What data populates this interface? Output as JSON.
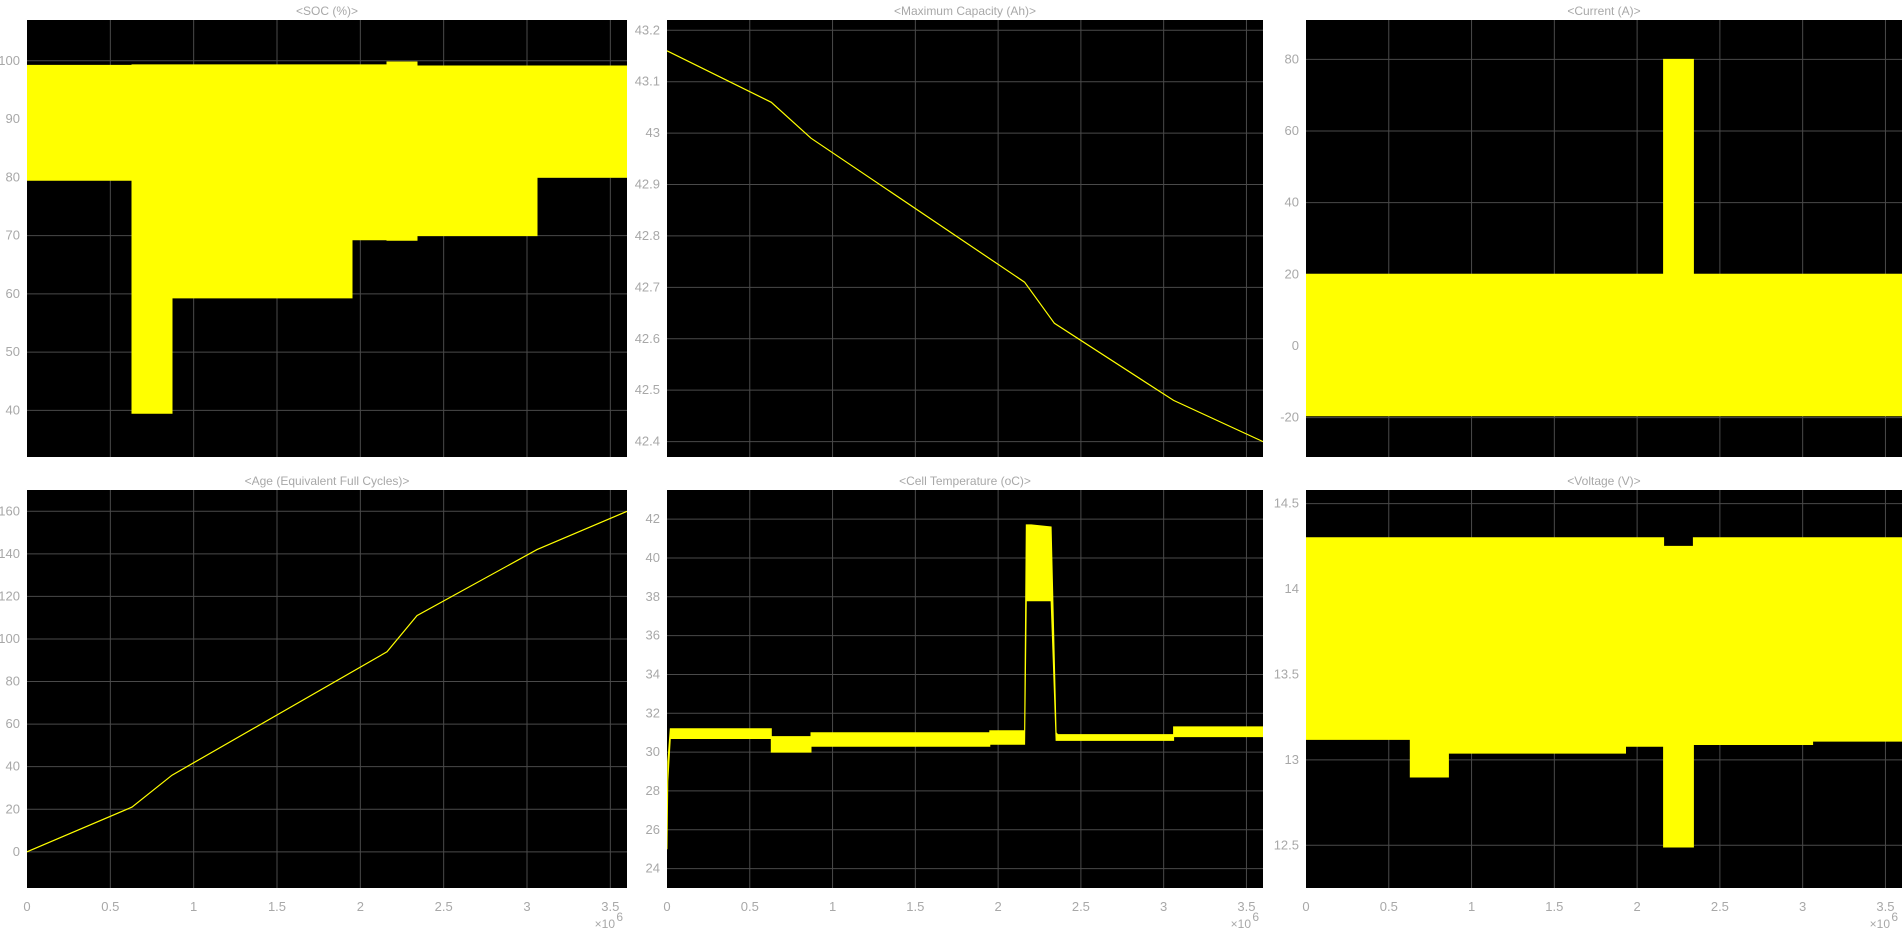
{
  "colors": {
    "background": "#ffffff",
    "axes": "#000000",
    "grid": "#4a4a4a",
    "trace": "#ffff00",
    "text": "#a8a8a8"
  },
  "x_exponent": "×10",
  "x_exponent_power": "6",
  "chart_data": [
    {
      "id": "soc",
      "title": "<SOC (%)>",
      "type": "area",
      "xlim": [
        0,
        3.6
      ],
      "ylim": [
        32,
        107
      ],
      "xticks": [
        0,
        0.5,
        1,
        1.5,
        2,
        2.5,
        3,
        3.5
      ],
      "xtick_labels": [
        "",
        "",
        "",
        "",
        "",
        "",
        "",
        ""
      ],
      "yticks": [
        40,
        50,
        60,
        70,
        80,
        90,
        100
      ],
      "ytick_labels": [
        "40",
        "50",
        "60",
        "70",
        "80",
        "90",
        "100"
      ],
      "grid": true,
      "band": {
        "x": [
          0,
          0.63,
          0.63,
          0.87,
          0.87,
          1.95,
          1.95,
          2.16,
          2.16,
          2.34,
          2.34,
          3.06,
          3.06,
          3.6
        ],
        "upper": [
          99.2,
          99.2,
          99.3,
          99.3,
          99.3,
          99.3,
          99.3,
          99.3,
          99.8,
          99.8,
          99.1,
          99.1,
          99.1,
          99.1
        ],
        "lower": [
          79.5,
          79.5,
          39.5,
          39.5,
          59.3,
          59.3,
          69.3,
          69.3,
          69.2,
          69.2,
          70.0,
          70.0,
          80.0,
          80.0
        ]
      }
    },
    {
      "id": "max_capacity",
      "title": "<Maximum Capacity  (Ah)>",
      "type": "line",
      "xlim": [
        0,
        3.6
      ],
      "ylim": [
        42.37,
        43.22
      ],
      "xticks": [
        0,
        0.5,
        1,
        1.5,
        2,
        2.5,
        3,
        3.5
      ],
      "xtick_labels": [
        "",
        "",
        "",
        "",
        "",
        "",
        "",
        ""
      ],
      "yticks": [
        42.4,
        42.5,
        42.6,
        42.7,
        42.8,
        42.9,
        43,
        43.1,
        43.2
      ],
      "ytick_labels": [
        "42.4",
        "42.5",
        "42.6",
        "42.7",
        "42.8",
        "42.9",
        "43",
        "43.1",
        "43.2"
      ],
      "grid": true,
      "x": [
        0,
        0.63,
        0.87,
        2.16,
        2.34,
        3.06,
        3.6
      ],
      "y": [
        43.16,
        43.06,
        42.99,
        42.71,
        42.63,
        42.48,
        42.4
      ]
    },
    {
      "id": "current",
      "title": "<Current (A)>",
      "type": "area",
      "xlim": [
        0,
        3.6
      ],
      "ylim": [
        -31,
        91
      ],
      "xticks": [
        0,
        0.5,
        1,
        1.5,
        2,
        2.5,
        3,
        3.5
      ],
      "xtick_labels": [
        "",
        "",
        "",
        "",
        "",
        "",
        "",
        ""
      ],
      "yticks": [
        -20,
        0,
        20,
        40,
        60,
        80
      ],
      "ytick_labels": [
        "-20",
        "0",
        "20",
        "40",
        "60",
        "80"
      ],
      "grid": true,
      "band": {
        "x": [
          0,
          2.16,
          2.16,
          2.34,
          2.34,
          3.6
        ],
        "upper": [
          20,
          20,
          80,
          80,
          20,
          20
        ],
        "lower": [
          -19.5,
          -19.5,
          -19.5,
          -19.5,
          -19.5,
          -19.5
        ]
      }
    },
    {
      "id": "age",
      "title": "<Age (Equivalent Full Cycles)>",
      "type": "line",
      "xlim": [
        0,
        3.6
      ],
      "ylim": [
        -17,
        170
      ],
      "xticks": [
        0,
        0.5,
        1,
        1.5,
        2,
        2.5,
        3,
        3.5
      ],
      "xtick_labels": [
        "0",
        "0.5",
        "1",
        "1.5",
        "2",
        "2.5",
        "3",
        "3.5"
      ],
      "yticks": [
        0,
        20,
        40,
        60,
        80,
        100,
        120,
        140,
        160
      ],
      "ytick_labels": [
        "0",
        "20",
        "40",
        "60",
        "80",
        "100",
        "120",
        "140",
        "160"
      ],
      "grid": true,
      "x": [
        0,
        0.63,
        0.87,
        2.16,
        2.34,
        3.06,
        3.6
      ],
      "y": [
        0,
        21,
        36,
        94,
        111,
        142,
        160
      ]
    },
    {
      "id": "cell_temperature",
      "title": "<Cell Temperature (oC)>",
      "type": "area",
      "xlim": [
        0,
        3.6
      ],
      "ylim": [
        23,
        43.5
      ],
      "xticks": [
        0,
        0.5,
        1,
        1.5,
        2,
        2.5,
        3,
        3.5
      ],
      "xtick_labels": [
        "0",
        "0.5",
        "1",
        "1.5",
        "2",
        "2.5",
        "3",
        "3.5"
      ],
      "yticks": [
        24,
        26,
        28,
        30,
        32,
        34,
        36,
        38,
        40,
        42
      ],
      "ytick_labels": [
        "24",
        "26",
        "28",
        "30",
        "32",
        "34",
        "36",
        "38",
        "40",
        "42"
      ],
      "grid": true,
      "band": {
        "x": [
          0,
          0.005,
          0.02,
          0.63,
          0.63,
          0.87,
          0.87,
          1.95,
          1.95,
          2.16,
          2.17,
          2.2,
          2.32,
          2.35,
          2.36,
          3.06,
          3.06,
          3.6
        ],
        "upper": [
          25,
          29.5,
          31.2,
          31.2,
          30.8,
          30.8,
          31.0,
          31.0,
          31.1,
          31.1,
          41.7,
          41.7,
          41.6,
          31.0,
          30.9,
          30.9,
          31.3,
          31.3
        ],
        "lower": [
          25,
          28.5,
          30.7,
          30.7,
          30.0,
          30.0,
          30.3,
          30.3,
          30.4,
          30.4,
          37.8,
          37.8,
          37.8,
          30.6,
          30.6,
          30.6,
          30.8,
          30.8
        ]
      }
    },
    {
      "id": "voltage",
      "title": "<Voltage (V)>",
      "type": "area",
      "xlim": [
        0,
        3.6
      ],
      "ylim": [
        12.25,
        14.58
      ],
      "xticks": [
        0,
        0.5,
        1,
        1.5,
        2,
        2.5,
        3,
        3.5
      ],
      "xtick_labels": [
        "0",
        "0.5",
        "1",
        "1.5",
        "2",
        "2.5",
        "3",
        "3.5"
      ],
      "yticks": [
        12.5,
        13,
        13.5,
        14,
        14.5
      ],
      "ytick_labels": [
        "12.5",
        "13",
        "13.5",
        "14",
        "14.5"
      ],
      "grid": true,
      "band": {
        "x": [
          0,
          0.63,
          0.63,
          0.86,
          0.86,
          1.93,
          1.93,
          2.16,
          2.16,
          2.34,
          2.34,
          3.06,
          3.06,
          3.6
        ],
        "upper": [
          14.3,
          14.3,
          14.3,
          14.3,
          14.3,
          14.3,
          14.3,
          14.3,
          14.25,
          14.25,
          14.3,
          14.3,
          14.3,
          14.3
        ],
        "lower": [
          13.12,
          13.12,
          12.9,
          12.9,
          13.04,
          13.04,
          13.08,
          13.08,
          12.49,
          12.49,
          13.09,
          13.09,
          13.11,
          13.11
        ]
      }
    }
  ]
}
